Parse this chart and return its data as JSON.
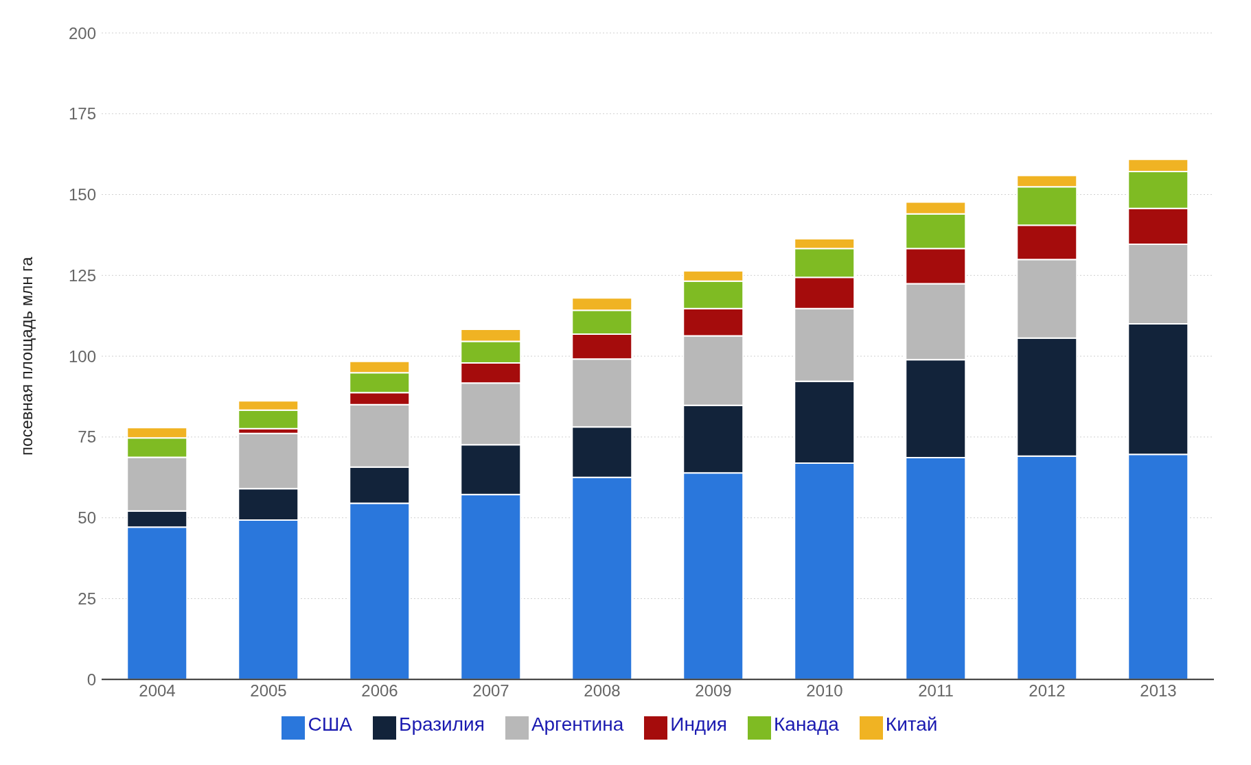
{
  "chart_data": {
    "type": "bar",
    "stacked": true,
    "ylabel": "посевная площадь млн га",
    "categories": [
      "2004",
      "2005",
      "2006",
      "2007",
      "2008",
      "2009",
      "2010",
      "2011",
      "2012",
      "2013"
    ],
    "series": [
      {
        "name": "США",
        "color": "#2a77dc",
        "values": [
          47.1,
          49.3,
          54.5,
          57.2,
          62.5,
          63.9,
          66.9,
          68.6,
          69.1,
          69.6
        ]
      },
      {
        "name": "Бразилия",
        "color": "#12233a",
        "values": [
          5,
          9.7,
          11.2,
          15.4,
          15.6,
          20.9,
          25.3,
          30.3,
          36.5,
          40.4
        ]
      },
      {
        "name": "Аргентина",
        "color": "#b8b8b8",
        "values": [
          16.6,
          17.1,
          19.3,
          19.1,
          21,
          21.5,
          22.5,
          23.5,
          24.3,
          24.6
        ]
      },
      {
        "name": "Индия",
        "color": "#a50c0c",
        "values": [
          0,
          1.5,
          3.7,
          6.2,
          7.7,
          8.4,
          9.7,
          10.9,
          10.6,
          11.1
        ]
      },
      {
        "name": "Канада",
        "color": "#7fbb23",
        "values": [
          6,
          5.7,
          6.2,
          6.7,
          7.4,
          8.5,
          8.9,
          10.7,
          11.9,
          11.4
        ]
      },
      {
        "name": "Китай",
        "color": "#f0b323",
        "values": [
          3.2,
          2.9,
          3.5,
          3.7,
          3.8,
          3.2,
          3,
          3.7,
          3.5,
          3.8
        ]
      }
    ],
    "ylim": [
      0,
      200
    ],
    "yticks": [
      0,
      25,
      50,
      75,
      100,
      125,
      150,
      175,
      200
    ],
    "grid": "y",
    "legend": "bottom"
  }
}
